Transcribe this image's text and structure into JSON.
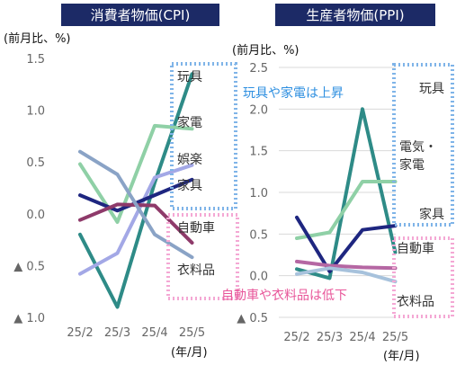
{
  "colors": {
    "header_bg": "#1c2a66",
    "header_text": "#ffffff",
    "blue_box": "#7fb4e8",
    "pink_box": "#f4a8d4",
    "blue_note": "#2e8fe0",
    "pink_note": "#e8579a",
    "axis_text": "#666666",
    "label_text": "#333333",
    "grid": "#d9d9d9"
  },
  "annotations": {
    "cpi_up_box": "",
    "cpi_down_box": "",
    "ppi_up_note": "玩具や家電は上昇",
    "ppi_down_note": "自動車や衣料品は低下"
  },
  "chart_data": [
    {
      "type": "line",
      "title": "消費者物価(CPI)",
      "ylabel": "(前月比、%)",
      "xlabel": "(年/月)",
      "categories": [
        "25/2",
        "25/3",
        "25/4",
        "25/5"
      ],
      "ylim": [
        -1.0,
        1.5
      ],
      "yticks": [
        1.5,
        1.0,
        0.5,
        0.0,
        -0.5,
        -1.0
      ],
      "ytick_labels": [
        "1.5",
        "1.0",
        "0.5",
        "0.0",
        "▲ 0.5",
        "▲ 1.0"
      ],
      "grid": false,
      "series": [
        {
          "name": "玩具",
          "color": "#2e8b87",
          "values": [
            -0.2,
            -0.9,
            0.3,
            1.35
          ]
        },
        {
          "name": "家電",
          "color": "#8fd0a6",
          "values": [
            0.48,
            -0.08,
            0.85,
            0.82
          ]
        },
        {
          "name": "娯楽",
          "color": "#a3a8e6",
          "values": [
            -0.58,
            -0.38,
            0.35,
            0.47
          ]
        },
        {
          "name": "家具",
          "color": "#1e2680",
          "values": [
            0.18,
            0.03,
            0.18,
            0.33
          ]
        },
        {
          "name": "自動車",
          "color": "#8e3a6a",
          "values": [
            -0.06,
            0.09,
            0.08,
            -0.28
          ]
        },
        {
          "name": "衣料品",
          "color": "#8aa3c6",
          "values": [
            0.6,
            0.38,
            -0.2,
            -0.42
          ]
        }
      ]
    },
    {
      "type": "line",
      "title": "生産者物価(PPI)",
      "ylabel": "(前月比、%)",
      "xlabel": "(年/月)",
      "categories": [
        "25/2",
        "25/3",
        "25/4",
        "25/5"
      ],
      "ylim": [
        -0.5,
        2.5
      ],
      "yticks": [
        2.5,
        2.0,
        1.5,
        1.0,
        0.5,
        0.0,
        -0.5
      ],
      "ytick_labels": [
        "2.5",
        "2.0",
        "1.5",
        "1.0",
        "0.5",
        "0.0",
        "▲ 0.5"
      ],
      "grid": true,
      "series": [
        {
          "name": "玩具",
          "color": "#2e8b87",
          "values": [
            0.08,
            -0.03,
            2.0,
            0.28
          ]
        },
        {
          "name": "電気・家電",
          "color": "#8fd0a6",
          "values": [
            0.45,
            0.52,
            1.13,
            1.13
          ]
        },
        {
          "name": "家具",
          "color": "#1e2680",
          "values": [
            0.7,
            0.05,
            0.55,
            0.6
          ]
        },
        {
          "name": "自動車",
          "color": "#b567a3",
          "values": [
            0.17,
            0.12,
            0.1,
            0.09
          ]
        },
        {
          "name": "衣料品",
          "color": "#a7c2dc",
          "values": [
            0.02,
            0.09,
            0.04,
            -0.07
          ]
        }
      ]
    }
  ]
}
